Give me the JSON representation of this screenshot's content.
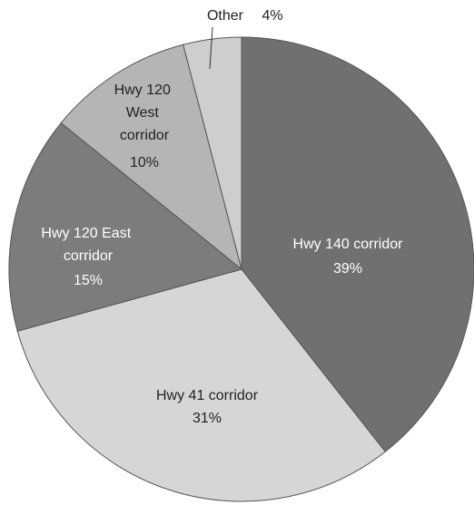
{
  "chart_data": {
    "type": "pie",
    "categories": [
      "Hwy 140 corridor",
      "Hwy 41 corridor",
      "Hwy 120 East corridor",
      "Hwy 120 West corridor",
      "Other"
    ],
    "values": [
      39,
      31,
      15,
      10,
      4
    ],
    "value_labels": [
      "39%",
      "31%",
      "15%",
      "10%",
      "4%"
    ],
    "colors": [
      "#707070",
      "#d6d6d6",
      "#7c7c7c",
      "#b5b5b5",
      "#cecece"
    ]
  }
}
